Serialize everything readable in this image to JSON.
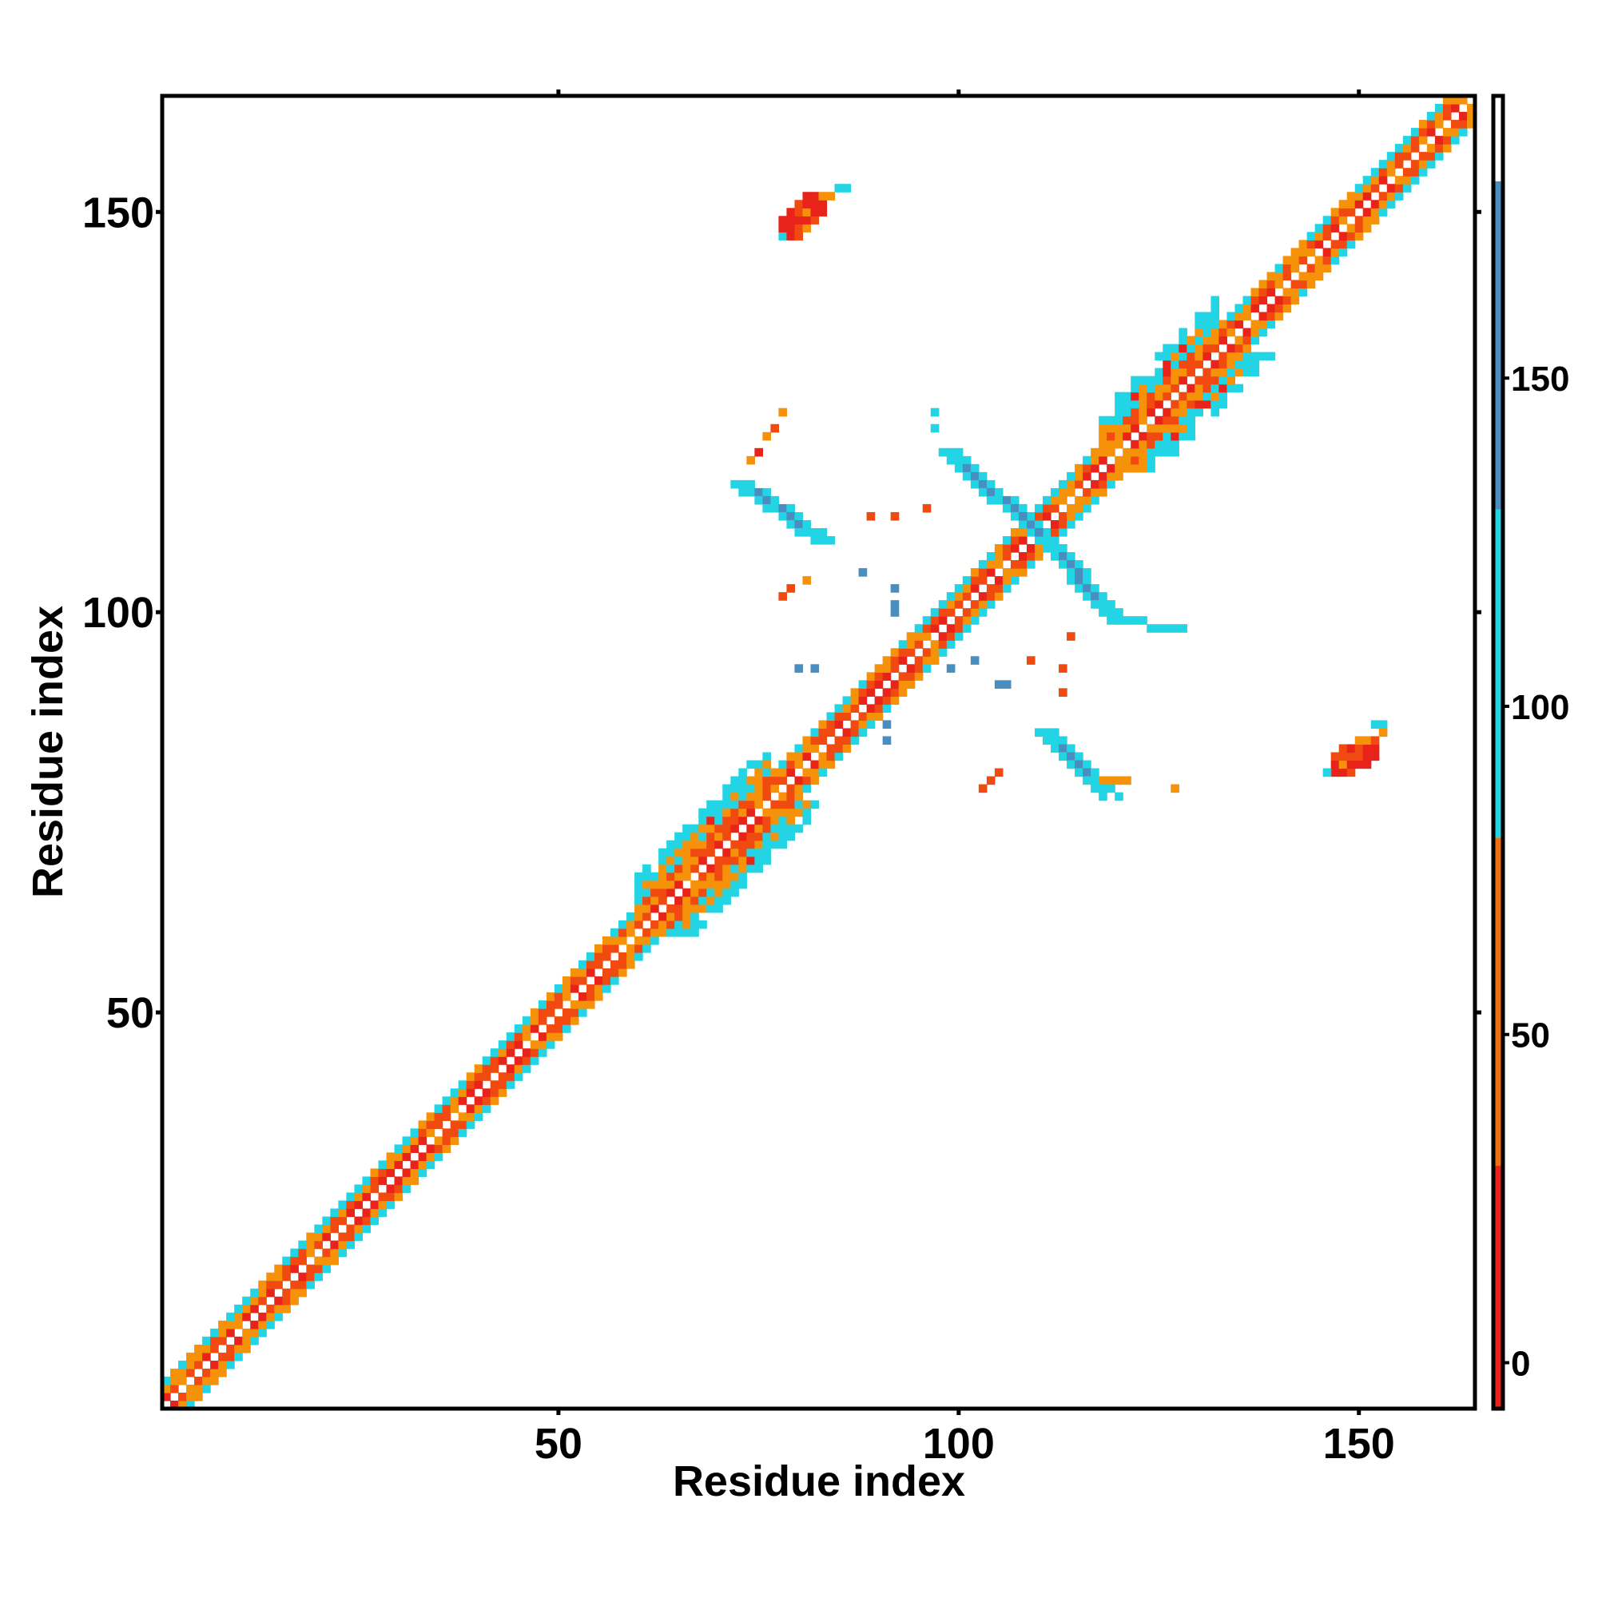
{
  "chart_data": {
    "type": "heatmap",
    "title": "",
    "xlabel": "Residue index",
    "ylabel": "Residue index",
    "xlim": [
      1,
      164
    ],
    "ylim": [
      1,
      164
    ],
    "xticks": [
      50,
      100,
      150
    ],
    "yticks": [
      50,
      100,
      150
    ],
    "grid": false,
    "colorbar": {
      "ticks": [
        0,
        50,
        100,
        150
      ],
      "range": [
        -7,
        193
      ],
      "bands": [
        {
          "from": -7,
          "to": 30,
          "color": "#e8231a"
        },
        {
          "from": 30,
          "to": 80,
          "color": "#f07010"
        },
        {
          "from": 80,
          "to": 130,
          "color": "#22d4e4"
        },
        {
          "from": 130,
          "to": 180,
          "color": "#4a8ec0"
        },
        {
          "from": 180,
          "to": 193,
          "color": "#ffffff"
        }
      ]
    },
    "colors": {
      "red": "#e8231a",
      "orange_red": "#f04a10",
      "orange": "#f5920a",
      "cyan": "#22d4e4",
      "steel": "#4a8ec0"
    },
    "regions": [
      {
        "kind": "diagonal_band",
        "from": 1,
        "to": 164,
        "value": 40
      },
      {
        "kind": "helix_segment",
        "from": 60,
        "to": 76,
        "value": 110
      },
      {
        "kind": "helix_segment",
        "from": 118,
        "to": 132,
        "value": 110
      },
      {
        "kind": "antiparallel_strand",
        "x": [
          98,
          117
        ],
        "y": [
          123,
          103
        ],
        "value": 160
      },
      {
        "kind": "antiparallel_strand",
        "x": [
          107,
          127
        ],
        "y": [
          113,
          100
        ],
        "value": 160
      },
      {
        "kind": "antiparallel_strand",
        "x": [
          73,
          84
        ],
        "y": [
          118,
          110
        ],
        "value": 160
      },
      {
        "kind": "antiparallel_strand",
        "x": [
          111,
          124
        ],
        "y": [
          86,
          77
        ],
        "value": 160
      },
      {
        "kind": "patch",
        "x": [
          78,
          86
        ],
        "y": [
          146,
          153
        ],
        "value": 20
      },
      {
        "kind": "patch",
        "x": [
          146,
          153
        ],
        "y": [
          79,
          86
        ],
        "value": 20
      }
    ]
  }
}
